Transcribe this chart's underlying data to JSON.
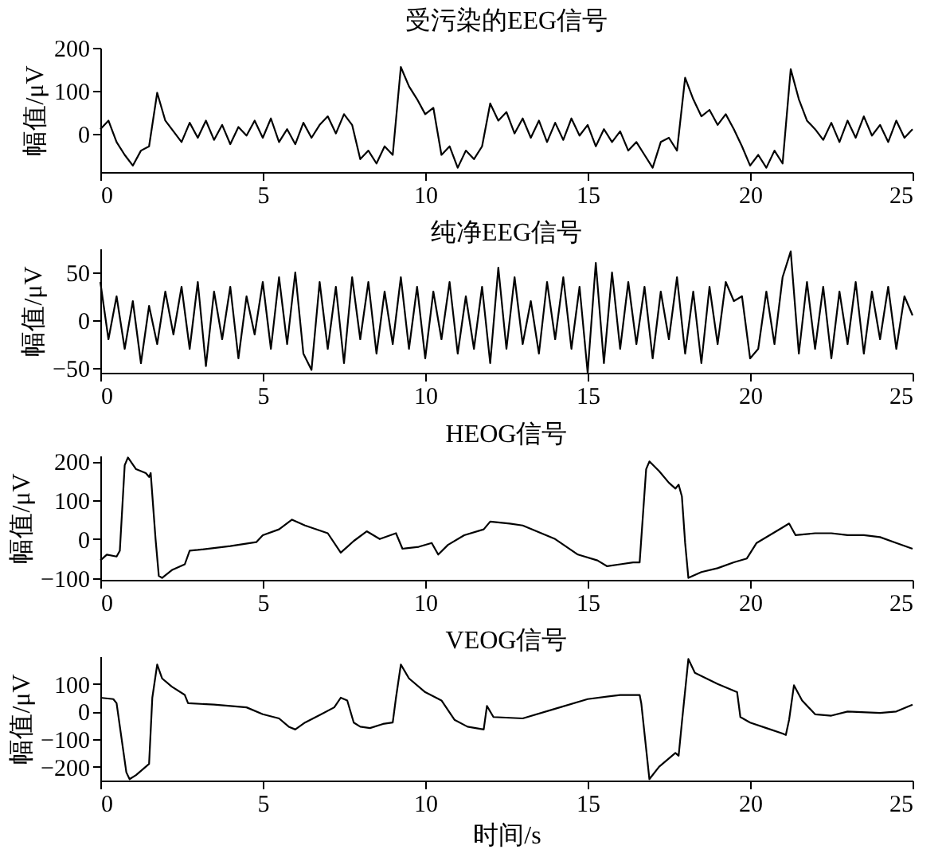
{
  "chart_data": [
    {
      "type": "line",
      "title": "受污染的EEG信号",
      "ylabel": "幅值/μV",
      "xlim": [
        0,
        25
      ],
      "xticks": [
        0,
        5,
        10,
        15,
        20,
        25
      ],
      "ylim": [
        -90,
        200
      ],
      "yticks": [
        0,
        100,
        200
      ],
      "grid": false,
      "line_style": "solid",
      "marker": "none",
      "x": [
        0,
        0.25,
        0.5,
        0.75,
        1,
        1.25,
        1.5,
        1.75,
        2,
        2.25,
        2.5,
        2.75,
        3,
        3.25,
        3.5,
        3.75,
        4,
        4.25,
        4.5,
        4.75,
        5,
        5.25,
        5.5,
        5.75,
        6,
        6.25,
        6.5,
        6.75,
        7,
        7.25,
        7.5,
        7.75,
        8,
        8.25,
        8.5,
        8.75,
        9,
        9.25,
        9.5,
        9.75,
        10,
        10.25,
        10.5,
        10.75,
        11,
        11.25,
        11.5,
        11.75,
        12,
        12.25,
        12.5,
        12.75,
        13,
        13.25,
        13.5,
        13.75,
        14,
        14.25,
        14.5,
        14.75,
        15,
        15.25,
        15.5,
        15.75,
        16,
        16.25,
        16.5,
        16.75,
        17,
        17.25,
        17.5,
        17.75,
        18,
        18.25,
        18.5,
        18.75,
        19,
        19.25,
        19.5,
        19.75,
        20,
        20.25,
        20.5,
        20.75,
        21,
        21.25,
        21.5,
        21.75,
        22,
        22.25,
        22.5,
        22.75,
        23,
        23.25,
        23.5,
        23.75,
        24,
        24.25,
        24.5,
        24.75,
        25
      ],
      "series": [
        {
          "color": "#000000",
          "values": [
            10,
            30,
            -20,
            -50,
            -75,
            -40,
            -30,
            95,
            30,
            5,
            -20,
            25,
            -10,
            30,
            -15,
            20,
            -25,
            15,
            -5,
            30,
            -10,
            35,
            -20,
            10,
            -25,
            25,
            -10,
            20,
            40,
            0,
            45,
            20,
            -60,
            -40,
            -70,
            -30,
            -50,
            155,
            110,
            80,
            45,
            60,
            -50,
            -30,
            -80,
            -40,
            -60,
            -30,
            70,
            30,
            50,
            0,
            35,
            -10,
            30,
            -20,
            25,
            -15,
            35,
            -5,
            20,
            -30,
            10,
            -20,
            5,
            -40,
            -20,
            -50,
            -80,
            -20,
            -10,
            -40,
            130,
            80,
            40,
            55,
            20,
            45,
            10,
            -30,
            -75,
            -50,
            -80,
            -40,
            -70,
            150,
            80,
            30,
            10,
            -15,
            25,
            -20,
            30,
            -10,
            40,
            -5,
            20,
            -20,
            30,
            -10,
            10
          ]
        }
      ]
    },
    {
      "type": "line",
      "title": "纯净EEG信号",
      "ylabel": "幅值/μV",
      "xlim": [
        0,
        25
      ],
      "xticks": [
        0,
        5,
        10,
        15,
        20,
        25
      ],
      "ylim": [
        -55,
        75
      ],
      "yticks": [
        -50,
        0,
        50
      ],
      "grid": false,
      "line_style": "solid",
      "marker": "none",
      "x": [
        0,
        0.25,
        0.5,
        0.75,
        1,
        1.25,
        1.5,
        1.75,
        2,
        2.25,
        2.5,
        2.75,
        3,
        3.25,
        3.5,
        3.75,
        4,
        4.25,
        4.5,
        4.75,
        5,
        5.25,
        5.5,
        5.75,
        6,
        6.25,
        6.5,
        6.75,
        7,
        7.25,
        7.5,
        7.75,
        8,
        8.25,
        8.5,
        8.75,
        9,
        9.25,
        9.5,
        9.75,
        10,
        10.25,
        10.5,
        10.75,
        11,
        11.25,
        11.5,
        11.75,
        12,
        12.25,
        12.5,
        12.75,
        13,
        13.25,
        13.5,
        13.75,
        14,
        14.25,
        14.5,
        14.75,
        15,
        15.25,
        15.5,
        15.75,
        16,
        16.25,
        16.5,
        16.75,
        17,
        17.25,
        17.5,
        17.75,
        18,
        18.25,
        18.5,
        18.75,
        19,
        19.25,
        19.5,
        19.75,
        20,
        20.25,
        20.5,
        20.75,
        21,
        21.25,
        21.5,
        21.75,
        22,
        22.25,
        22.5,
        22.75,
        23,
        23.25,
        23.5,
        23.75,
        24,
        24.25,
        24.5,
        24.75,
        25
      ],
      "series": [
        {
          "color": "#000000",
          "values": [
            40,
            -20,
            25,
            -30,
            20,
            -45,
            15,
            -25,
            30,
            -15,
            35,
            -30,
            40,
            -48,
            30,
            -20,
            35,
            -40,
            25,
            -15,
            40,
            -30,
            45,
            -25,
            50,
            -35,
            -52,
            40,
            -30,
            35,
            -45,
            45,
            -20,
            40,
            -35,
            30,
            -25,
            45,
            -30,
            35,
            -40,
            30,
            -20,
            40,
            -35,
            25,
            -30,
            35,
            -45,
            55,
            -30,
            45,
            -25,
            20,
            -35,
            40,
            -20,
            45,
            -30,
            35,
            -55,
            60,
            -45,
            50,
            -30,
            40,
            -25,
            35,
            -40,
            30,
            -20,
            45,
            -35,
            30,
            -45,
            35,
            -25,
            40,
            20,
            25,
            -40,
            -30,
            30,
            -25,
            45,
            72,
            -35,
            40,
            -30,
            35,
            -40,
            30,
            -25,
            40,
            -35,
            30,
            -20,
            35,
            -30,
            25,
            5
          ]
        }
      ]
    },
    {
      "type": "line",
      "title": "HEOG信号",
      "ylabel": "幅值/μV",
      "xlim": [
        0,
        25
      ],
      "xticks": [
        0,
        5,
        10,
        15,
        20,
        25
      ],
      "ylim": [
        -105,
        215
      ],
      "yticks": [
        -100,
        0,
        100,
        200
      ],
      "grid": false,
      "line_style": "solid",
      "marker": "none",
      "x": [
        0,
        0.2,
        0.5,
        0.6,
        0.75,
        0.85,
        1.1,
        1.4,
        1.5,
        1.55,
        1.7,
        1.8,
        1.9,
        2.2,
        2.6,
        2.75,
        3,
        4,
        4.8,
        5,
        5.5,
        5.9,
        6.3,
        7,
        7.4,
        7.6,
        7.8,
        8.2,
        8.6,
        9.1,
        9.3,
        9.8,
        10.2,
        10.4,
        10.7,
        11.2,
        11.8,
        12,
        12.6,
        13,
        14,
        14.7,
        15.3,
        15.6,
        16,
        16.4,
        16.6,
        16.8,
        16.9,
        17.2,
        17.5,
        17.7,
        17.8,
        17.9,
        18,
        18.1,
        18.5,
        19,
        19.5,
        19.9,
        20.2,
        20.6,
        21,
        21.2,
        21.4,
        22,
        22.5,
        23,
        23.5,
        24,
        24.5,
        25
      ],
      "series": [
        {
          "color": "#000000",
          "values": [
            -55,
            -40,
            -45,
            -30,
            190,
            210,
            180,
            170,
            160,
            170,
            0,
            -95,
            -100,
            -80,
            -65,
            -30,
            -28,
            -18,
            -8,
            10,
            25,
            50,
            35,
            15,
            -35,
            -20,
            -5,
            20,
            0,
            15,
            -25,
            -20,
            -10,
            -40,
            -15,
            10,
            25,
            45,
            40,
            35,
            0,
            -40,
            -55,
            -70,
            -65,
            -60,
            -60,
            180,
            200,
            175,
            145,
            130,
            140,
            110,
            -10,
            -100,
            -85,
            -75,
            -60,
            -50,
            -10,
            10,
            30,
            40,
            10,
            15,
            15,
            10,
            10,
            5,
            -10,
            -25
          ]
        }
      ]
    },
    {
      "type": "line",
      "title": "VEOG信号",
      "xlabel": "时间/s",
      "ylabel": "幅值/μV",
      "xlim": [
        0,
        25
      ],
      "xticks": [
        0,
        5,
        10,
        15,
        20,
        25
      ],
      "ylim": [
        -250,
        200
      ],
      "yticks": [
        -200,
        -100,
        0,
        100
      ],
      "grid": false,
      "line_style": "solid",
      "marker": "none",
      "x": [
        0,
        0.4,
        0.5,
        0.8,
        0.9,
        1.1,
        1.4,
        1.5,
        1.6,
        1.75,
        1.9,
        2.2,
        2.6,
        2.7,
        3.5,
        4.5,
        5,
        5.5,
        5.8,
        6,
        6.3,
        6.8,
        7.2,
        7.4,
        7.6,
        7.8,
        8,
        8.3,
        8.7,
        9,
        9.1,
        9.25,
        9.5,
        10,
        10.5,
        10.9,
        11.3,
        11.8,
        11.9,
        12.1,
        13,
        14,
        15,
        16,
        16.6,
        16.65,
        16.9,
        17.2,
        17.7,
        17.8,
        17.9,
        18.1,
        18.3,
        19,
        19.6,
        19.7,
        20,
        20.5,
        21,
        21.1,
        21.2,
        21.35,
        21.6,
        22,
        22.5,
        23,
        24,
        24.5,
        25
      ],
      "series": [
        {
          "color": "#000000",
          "values": [
            50,
            45,
            30,
            -220,
            -245,
            -230,
            -200,
            -190,
            50,
            170,
            120,
            90,
            60,
            30,
            25,
            15,
            -10,
            -25,
            -55,
            -65,
            -40,
            -10,
            15,
            50,
            40,
            -40,
            -55,
            -60,
            -45,
            -40,
            50,
            170,
            120,
            70,
            40,
            -30,
            -55,
            -65,
            20,
            -20,
            -25,
            10,
            45,
            60,
            60,
            30,
            -245,
            -200,
            -150,
            -160,
            -40,
            190,
            140,
            100,
            70,
            -20,
            -40,
            -60,
            -80,
            -85,
            -30,
            95,
            40,
            -10,
            -15,
            0,
            -5,
            0,
            25
          ]
        }
      ]
    }
  ]
}
